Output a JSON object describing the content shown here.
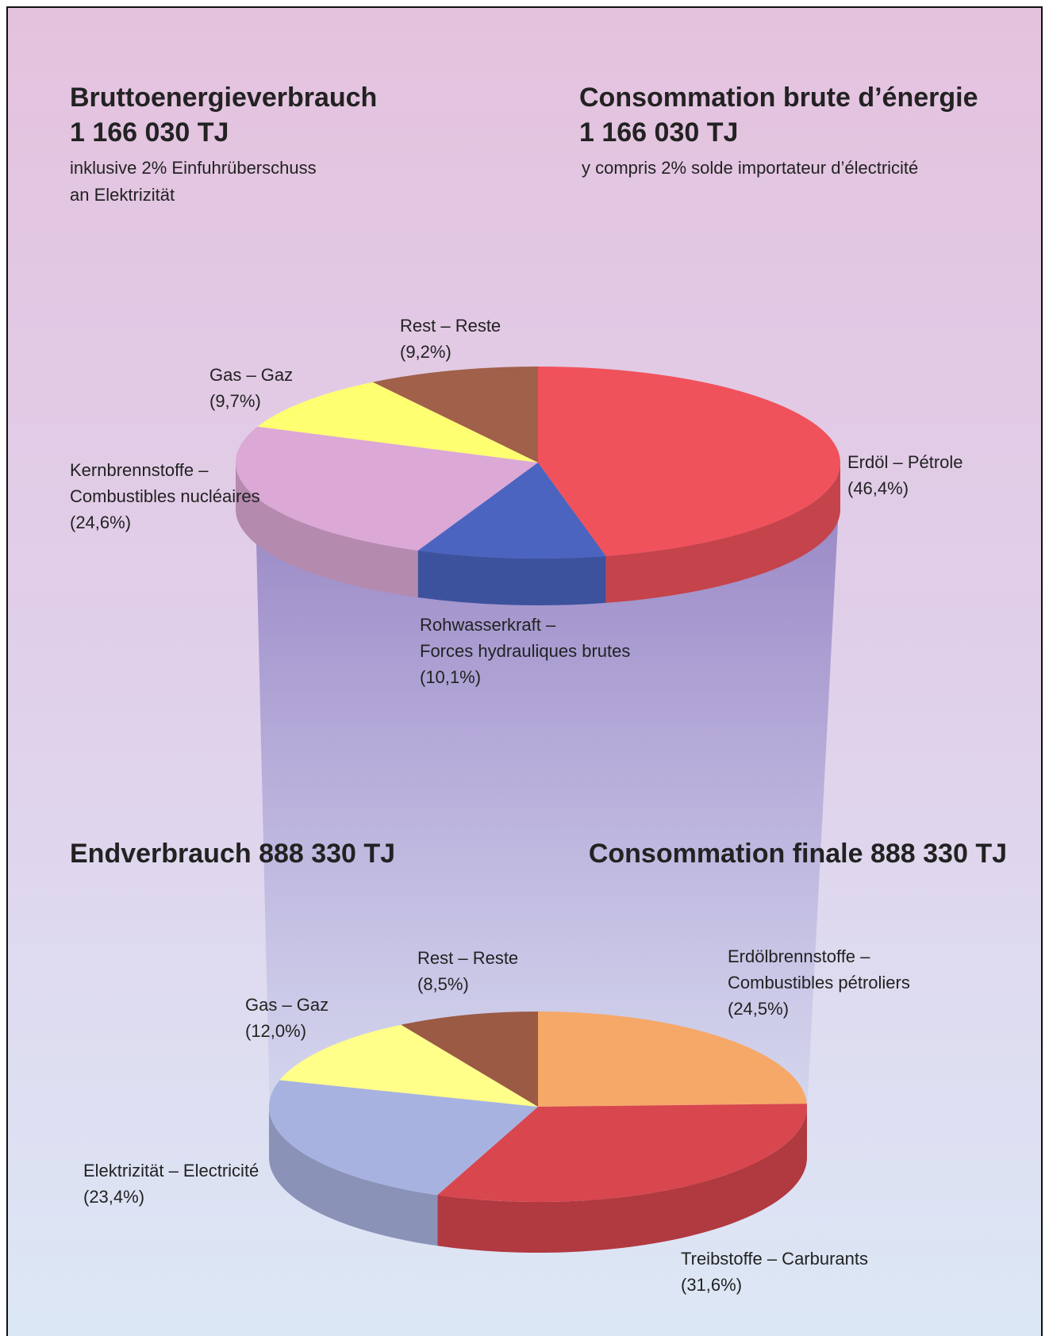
{
  "chart_data": [
    {
      "type": "pie",
      "titles": [
        {
          "title": "Bruttoenergieverbrauch",
          "total": "1 166 030 TJ",
          "subtitle": "inklusive 2% Einfuhrüberschuss an Elektrizität"
        },
        {
          "title": "Consommation brute d’énergie",
          "total": "1 166 030 TJ",
          "subtitle": "y compris 2% solde importateur d’électricité"
        }
      ],
      "categories": [
        "Erdöl – Pétrole",
        "Rohwasserkraft – Forces hydrauliques brutes",
        "Kernbrennstoffe – Combustibles nucléaires",
        "Gas – Gaz",
        "Rest – Reste"
      ],
      "values": [
        46.4,
        10.1,
        24.6,
        9.7,
        9.2
      ],
      "value_labels": [
        "(46,4%)",
        "(10,1%)",
        "(24,6%)",
        "(9,7%)",
        "(9,2%)"
      ],
      "colors": [
        "#f0525c",
        "#4a64c0",
        "#dca8d6",
        "#ffff72",
        "#a0604a"
      ]
    },
    {
      "type": "pie",
      "titles": [
        {
          "title": "Endverbrauch 888 330 TJ"
        },
        {
          "title": "Consommation finale 888 330 TJ"
        }
      ],
      "categories": [
        "Erdölbrennstoffe – Combustibles pétroliers",
        "Treibstoffe – Carburants",
        "Elektrizität – Electricité",
        "Gas – Gaz",
        "Rest – Reste"
      ],
      "values": [
        24.5,
        31.6,
        23.4,
        12.0,
        8.5
      ],
      "value_labels": [
        "(24,5%)",
        "(31,6%)",
        "(23,4%)",
        "(12,0%)",
        "(8,5%)"
      ],
      "colors": [
        "#f6a868",
        "#d8464e",
        "#a8b2e0",
        "#ffff8a",
        "#9a5a44"
      ]
    }
  ]
}
